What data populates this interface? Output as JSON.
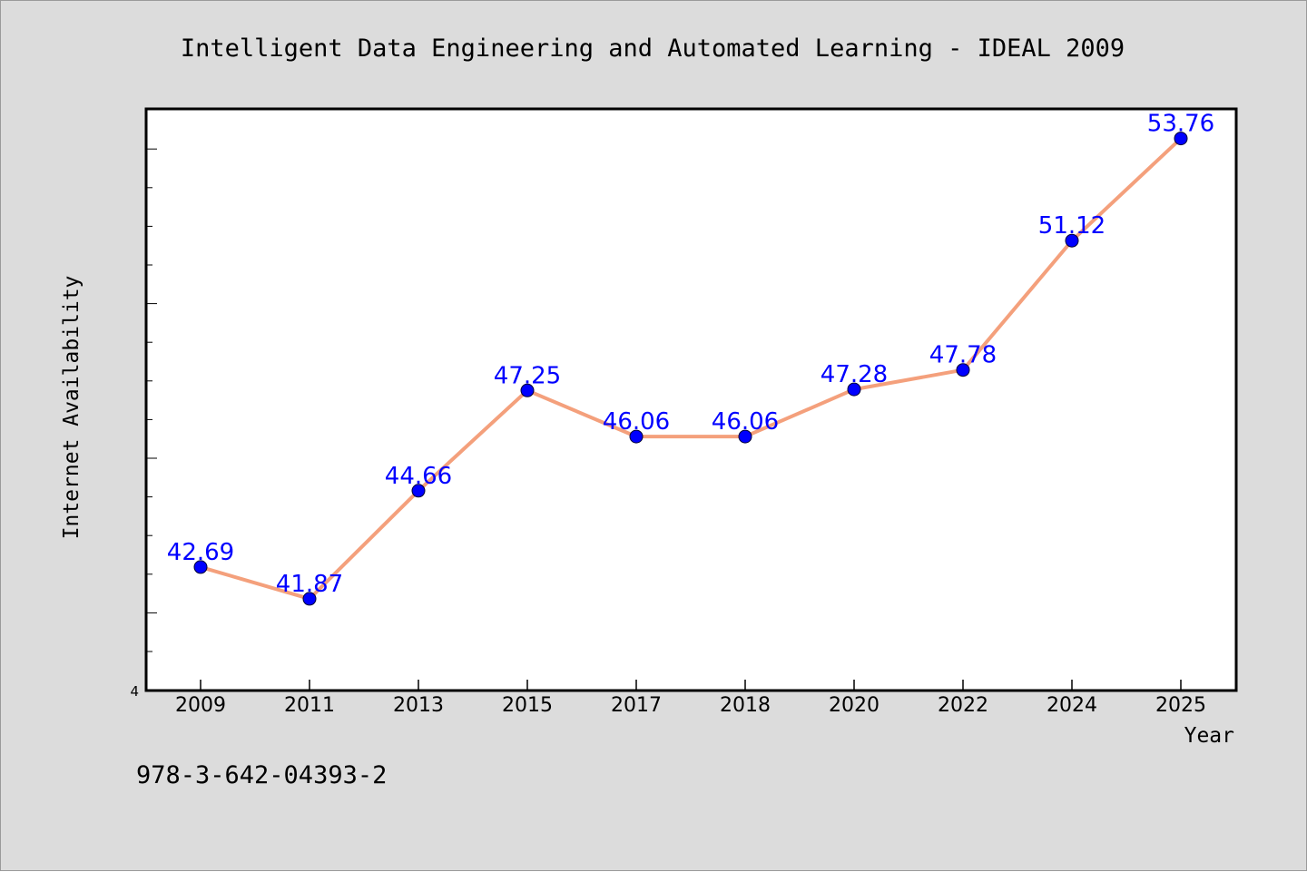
{
  "footer": {
    "isbn": "978-3-642-04393-2"
  },
  "chart_data": {
    "type": "line",
    "title": "Intelligent Data Engineering and Automated Learning - IDEAL 2009",
    "xlabel": "Year",
    "ylabel": "Internet Availability",
    "categories": [
      "2009",
      "2011",
      "2013",
      "2015",
      "2017",
      "2018",
      "2020",
      "2022",
      "2024",
      "2025"
    ],
    "series": [
      {
        "values": [
          42.69,
          41.87,
          44.66,
          47.25,
          46.06,
          46.06,
          47.28,
          47.78,
          51.12,
          53.76
        ]
      }
    ],
    "y_tick_labels": [
      "4"
    ],
    "ylim": [
      39.5,
      54.5
    ],
    "grid": false,
    "line_color": "#f4a07c",
    "marker_color": "#0000ff",
    "label_color": "#0000ff",
    "plot_background": "#ffffff",
    "page_background": "#dcdcdc"
  }
}
